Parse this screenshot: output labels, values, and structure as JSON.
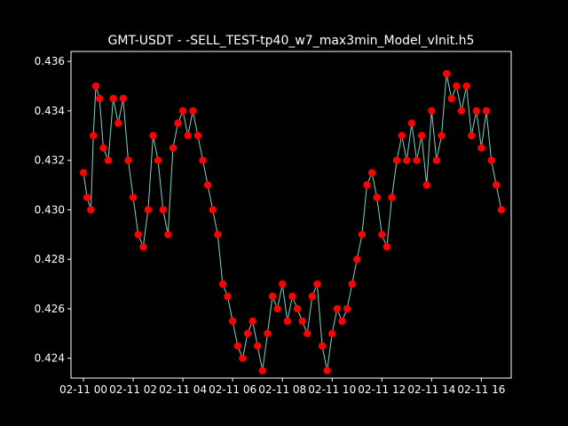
{
  "colors": {
    "background": "#000000",
    "axes": "#ffffff",
    "line": "#7fd3c3",
    "marker": "#ff0000"
  },
  "chart_data": {
    "type": "line",
    "title": "GMT-USDT - -SELL_TEST-tp40_w7_max3min_Model_vInit.h5",
    "xlabel": "",
    "ylabel": "",
    "x_unit": "hours since 02-11 00:00",
    "xlim": [
      -0.5,
      17.2
    ],
    "ylim": [
      0.4232,
      0.4364
    ],
    "x_ticks": [
      {
        "x": 0,
        "label": "02-11 00"
      },
      {
        "x": 2,
        "label": "02-11 02"
      },
      {
        "x": 4,
        "label": "02-11 04"
      },
      {
        "x": 6,
        "label": "02-11 06"
      },
      {
        "x": 8,
        "label": "02-11 08"
      },
      {
        "x": 10,
        "label": "02-11 10"
      },
      {
        "x": 12,
        "label": "02-11 12"
      },
      {
        "x": 14,
        "label": "02-11 14"
      },
      {
        "x": 16,
        "label": "02-11 16"
      }
    ],
    "y_ticks": [
      {
        "y": 0.424,
        "label": "0.424"
      },
      {
        "y": 0.426,
        "label": "0.426"
      },
      {
        "y": 0.428,
        "label": "0.428"
      },
      {
        "y": 0.43,
        "label": "0.430"
      },
      {
        "y": 0.432,
        "label": "0.432"
      },
      {
        "y": 0.434,
        "label": "0.434"
      },
      {
        "y": 0.436,
        "label": "0.436"
      }
    ],
    "series": [
      {
        "x": [
          0.0,
          0.15,
          0.3,
          0.4,
          0.5,
          0.65,
          0.8,
          1.0,
          1.2,
          1.4,
          1.6,
          1.8,
          2.0,
          2.2,
          2.4,
          2.6,
          2.8,
          3.0,
          3.2,
          3.4,
          3.6,
          3.8,
          4.0,
          4.2,
          4.4,
          4.6,
          4.8,
          5.0,
          5.2,
          5.4,
          5.6,
          5.8,
          6.0,
          6.2,
          6.4,
          6.6,
          6.8,
          7.0,
          7.2,
          7.4,
          7.6,
          7.8,
          8.0,
          8.2,
          8.4,
          8.6,
          8.8,
          9.0,
          9.2,
          9.4,
          9.6,
          9.8,
          10.0,
          10.2,
          10.4,
          10.6,
          10.8,
          11.0,
          11.2,
          11.4,
          11.6,
          11.8,
          12.0,
          12.2,
          12.4,
          12.6,
          12.8,
          13.0,
          13.2,
          13.4,
          13.6,
          13.8,
          14.0,
          14.2,
          14.4,
          14.6,
          14.8,
          15.0,
          15.2,
          15.4,
          15.6,
          15.8,
          16.0,
          16.2,
          16.4,
          16.6,
          16.8
        ],
        "y": [
          0.4315,
          0.4305,
          0.43,
          0.433,
          0.435,
          0.4345,
          0.4325,
          0.432,
          0.4345,
          0.4335,
          0.4345,
          0.432,
          0.4305,
          0.429,
          0.4285,
          0.43,
          0.433,
          0.432,
          0.43,
          0.429,
          0.4325,
          0.4335,
          0.434,
          0.433,
          0.434,
          0.433,
          0.432,
          0.431,
          0.43,
          0.429,
          0.427,
          0.4265,
          0.4255,
          0.4245,
          0.424,
          0.425,
          0.4255,
          0.4245,
          0.4235,
          0.425,
          0.4265,
          0.426,
          0.427,
          0.4255,
          0.4265,
          0.426,
          0.4255,
          0.425,
          0.4265,
          0.427,
          0.4245,
          0.4235,
          0.425,
          0.426,
          0.4255,
          0.426,
          0.427,
          0.428,
          0.429,
          0.431,
          0.4315,
          0.4305,
          0.429,
          0.4285,
          0.4305,
          0.432,
          0.433,
          0.432,
          0.4335,
          0.432,
          0.433,
          0.431,
          0.434,
          0.432,
          0.433,
          0.4355,
          0.4345,
          0.435,
          0.434,
          0.435,
          0.433,
          0.434,
          0.4325,
          0.434,
          0.432,
          0.431,
          0.43
        ]
      }
    ]
  }
}
